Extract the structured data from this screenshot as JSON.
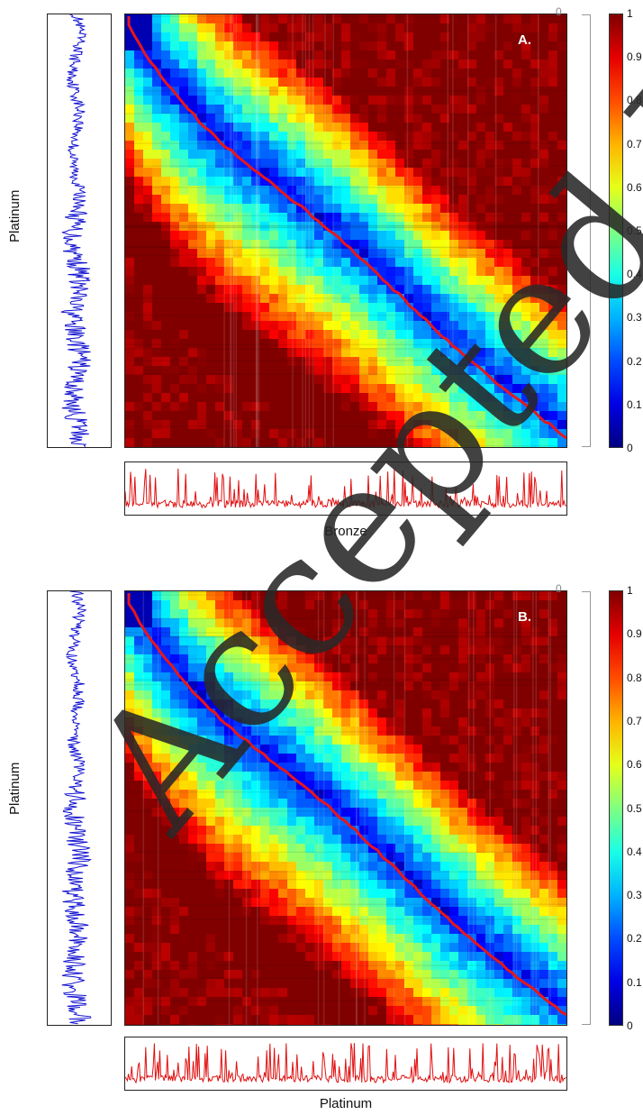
{
  "figure": {
    "watermark": "Accepted Manuscript",
    "colormap": "jet",
    "colorbar_ticks": [
      "1",
      "0.9",
      "0.8",
      "0.7",
      "0.6",
      "0.5",
      "0.4",
      "0.3",
      "0.2",
      "0.1",
      "0"
    ],
    "axis_top_tick": "0"
  },
  "panels": [
    {
      "label": "A.",
      "ylabel": "Platinum",
      "xlabel": "Bronze"
    },
    {
      "label": "B.",
      "ylabel": "Platinum",
      "xlabel": "Platinum"
    }
  ],
  "chart_data": [
    {
      "type": "heatmap",
      "title": "",
      "xlabel": "Bronze",
      "ylabel": "Platinum",
      "colorbar_range": [
        0,
        1
      ],
      "colors": {
        "line": "#e8161b",
        "signal_left": "#1010d0",
        "signal_bottom": "#e01010"
      }
    },
    {
      "type": "heatmap",
      "title": "",
      "xlabel": "Platinum",
      "ylabel": "Platinum",
      "colorbar_range": [
        0,
        1
      ],
      "colors": {
        "line": "#e8161b",
        "signal_left": "#1010d0",
        "signal_bottom": "#e01010"
      }
    }
  ]
}
